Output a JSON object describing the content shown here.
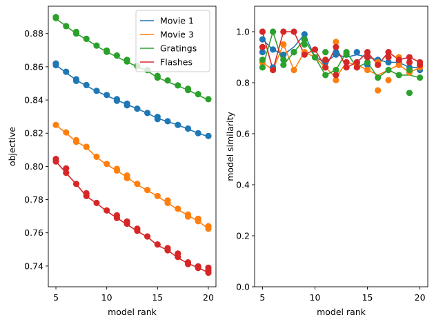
{
  "chart_data": [
    {
      "type": "line",
      "xlabel": "model rank",
      "ylabel": "objective",
      "xlim": [
        4.25,
        20.75
      ],
      "ylim": [
        0.7275,
        0.8965
      ],
      "xticks": [
        5,
        10,
        15,
        20
      ],
      "xtick_labels": [
        "5",
        "10",
        "15",
        "20"
      ],
      "yticks": [
        0.74,
        0.76,
        0.78,
        0.8,
        0.82,
        0.84,
        0.86,
        0.88
      ],
      "ytick_labels": [
        "0.74",
        "0.76",
        "0.78",
        "0.80",
        "0.82",
        "0.84",
        "0.86",
        "0.88"
      ],
      "legend": {
        "placement": "top-right",
        "entries": [
          "Movie 1",
          "Movie 3",
          "Gratings",
          "Flashes"
        ]
      },
      "grid": false,
      "x": [
        5,
        6,
        7,
        8,
        9,
        10,
        11,
        12,
        13,
        14,
        15,
        16,
        17,
        18,
        19,
        20
      ],
      "series": [
        {
          "name": "Movie 1",
          "color": "#1f77b4",
          "line": [
            0.861,
            0.8565,
            0.852,
            0.8485,
            0.8453,
            0.8425,
            0.84,
            0.8373,
            0.8347,
            0.832,
            0.829,
            0.827,
            0.825,
            0.8225,
            0.82,
            0.818
          ],
          "points": [
            [
              5,
              0.862
            ],
            [
              5,
              0.861
            ],
            [
              6,
              0.857
            ],
            [
              7,
              0.8525
            ],
            [
              7,
              0.8515
            ],
            [
              8,
              0.849
            ],
            [
              9,
              0.8455
            ],
            [
              10,
              0.843
            ],
            [
              11,
              0.8405
            ],
            [
              11,
              0.8395
            ],
            [
              12,
              0.8378
            ],
            [
              12,
              0.8368
            ],
            [
              13,
              0.8348
            ],
            [
              14,
              0.8322
            ],
            [
              15,
              0.8298
            ],
            [
              15,
              0.8285
            ],
            [
              16,
              0.8272
            ],
            [
              17,
              0.825
            ],
            [
              18,
              0.8228
            ],
            [
              19,
              0.82
            ],
            [
              20,
              0.8183
            ]
          ]
        },
        {
          "name": "Movie 3",
          "color": "#ff7f0e",
          "line": [
            0.825,
            0.82,
            0.815,
            0.8115,
            0.8055,
            0.801,
            0.7975,
            0.7935,
            0.789,
            0.7855,
            0.782,
            0.778,
            0.774,
            0.7705,
            0.767,
            0.7625
          ],
          "points": [
            [
              5,
              0.825
            ],
            [
              6,
              0.8205
            ],
            [
              7,
              0.8158
            ],
            [
              7,
              0.8148
            ],
            [
              8,
              0.8118
            ],
            [
              9,
              0.8058
            ],
            [
              10,
              0.8015
            ],
            [
              11,
              0.7985
            ],
            [
              11,
              0.7975
            ],
            [
              12,
              0.7945
            ],
            [
              12,
              0.793
            ],
            [
              13,
              0.7895
            ],
            [
              14,
              0.7858
            ],
            [
              15,
              0.7822
            ],
            [
              16,
              0.7795
            ],
            [
              16,
              0.778
            ],
            [
              17,
              0.7745
            ],
            [
              18,
              0.771
            ],
            [
              18,
              0.7698
            ],
            [
              19,
              0.7685
            ],
            [
              19,
              0.767
            ],
            [
              20,
              0.764
            ],
            [
              20,
              0.7625
            ]
          ]
        },
        {
          "name": "Gratings",
          "color": "#2ca02c",
          "line": [
            0.889,
            0.8845,
            0.88,
            0.8765,
            0.8725,
            0.869,
            0.866,
            0.863,
            0.86,
            0.8575,
            0.8535,
            0.851,
            0.8485,
            0.846,
            0.843,
            0.84
          ],
          "points": [
            [
              5,
              0.89
            ],
            [
              5,
              0.8893
            ],
            [
              6,
              0.8845
            ],
            [
              7,
              0.881
            ],
            [
              7,
              0.88
            ],
            [
              8,
              0.8768
            ],
            [
              9,
              0.8728
            ],
            [
              10,
              0.8698
            ],
            [
              10,
              0.869
            ],
            [
              11,
              0.8668
            ],
            [
              12,
              0.8642
            ],
            [
              12,
              0.8632
            ],
            [
              13,
              0.8605
            ],
            [
              14,
              0.858
            ],
            [
              15,
              0.8545
            ],
            [
              15,
              0.8535
            ],
            [
              16,
              0.8518
            ],
            [
              17,
              0.8488
            ],
            [
              18,
              0.8468
            ],
            [
              18,
              0.846
            ],
            [
              19,
              0.8435
            ],
            [
              20,
              0.8405
            ]
          ]
        },
        {
          "name": "Flashes",
          "color": "#d62728",
          "line": [
            0.803,
            0.796,
            0.7893,
            0.782,
            0.7778,
            0.773,
            0.769,
            0.765,
            0.761,
            0.7575,
            0.7525,
            0.7495,
            0.745,
            0.7415,
            0.739,
            0.736
          ],
          "points": [
            [
              5,
              0.8045
            ],
            [
              5,
              0.803
            ],
            [
              6,
              0.7988
            ],
            [
              6,
              0.7962
            ],
            [
              7,
              0.7895
            ],
            [
              8,
              0.7838
            ],
            [
              8,
              0.7822
            ],
            [
              9,
              0.778
            ],
            [
              10,
              0.7735
            ],
            [
              11,
              0.7705
            ],
            [
              11,
              0.769
            ],
            [
              12,
              0.7668
            ],
            [
              12,
              0.7655
            ],
            [
              13,
              0.7625
            ],
            [
              13,
              0.7612
            ],
            [
              14,
              0.7578
            ],
            [
              15,
              0.753
            ],
            [
              16,
              0.7508
            ],
            [
              16,
              0.7495
            ],
            [
              17,
              0.7475
            ],
            [
              17,
              0.7455
            ],
            [
              18,
              0.7422
            ],
            [
              18,
              0.7412
            ],
            [
              19,
              0.7398
            ],
            [
              19,
              0.7388
            ],
            [
              20,
              0.739
            ],
            [
              20,
              0.7375
            ],
            [
              20,
              0.736
            ]
          ]
        }
      ]
    },
    {
      "type": "line",
      "xlabel": "model rank",
      "ylabel": "model similarity",
      "xlim": [
        4.25,
        20.75
      ],
      "ylim": [
        0.0,
        1.1
      ],
      "xticks": [
        5,
        10,
        15,
        20
      ],
      "xtick_labels": [
        "5",
        "10",
        "15",
        "20"
      ],
      "yticks": [
        0.0,
        0.2,
        0.4,
        0.6,
        0.8,
        1.0
      ],
      "ytick_labels": [
        "0.0",
        "0.2",
        "0.4",
        "0.6",
        "0.8",
        "1.0"
      ],
      "grid": false,
      "x": [
        5,
        6,
        7,
        8,
        9,
        10,
        11,
        12,
        13,
        14,
        15,
        16,
        17,
        18,
        19,
        20
      ],
      "series": [
        {
          "color": "#1f77b4",
          "line": [
            0.97,
            0.93,
            0.91,
            0.94,
            0.99,
            0.9,
            0.88,
            0.91,
            0.9,
            0.91,
            0.9,
            0.89,
            0.88,
            0.88,
            0.86,
            0.86
          ],
          "points": [
            [
              5,
              0.97
            ],
            [
              5,
              0.92
            ],
            [
              6,
              0.93
            ],
            [
              6,
              0.86
            ],
            [
              7,
              0.91
            ],
            [
              7,
              0.89
            ],
            [
              8,
              0.92
            ],
            [
              9,
              0.99
            ],
            [
              9,
              0.97
            ],
            [
              10,
              0.9
            ],
            [
              11,
              0.88
            ],
            [
              12,
              0.91
            ],
            [
              12,
              0.92
            ],
            [
              13,
              0.91
            ],
            [
              14,
              0.92
            ],
            [
              14,
              0.88
            ],
            [
              15,
              0.9
            ],
            [
              15,
              0.87
            ],
            [
              16,
              0.89
            ],
            [
              17,
              0.88
            ],
            [
              18,
              0.88
            ],
            [
              19,
              0.86
            ],
            [
              20,
              0.85
            ]
          ]
        },
        {
          "color": "#ff7f0e",
          "line": [
            0.88,
            0.85,
            0.95,
            0.85,
            0.92,
            0.9,
            0.86,
            0.82,
            0.88,
            0.87,
            0.85,
            0.83,
            0.85,
            0.87,
            0.84,
            0.86
          ],
          "points": [
            [
              5,
              0.88
            ],
            [
              6,
              0.85
            ],
            [
              7,
              0.95
            ],
            [
              8,
              0.85
            ],
            [
              9,
              0.92
            ],
            [
              10,
              0.9
            ],
            [
              11,
              0.86
            ],
            [
              12,
              0.81
            ],
            [
              12,
              0.96
            ],
            [
              13,
              0.88
            ],
            [
              14,
              0.87
            ],
            [
              15,
              0.85
            ],
            [
              16,
              0.77
            ],
            [
              16,
              0.88
            ],
            [
              17,
              0.81
            ],
            [
              18,
              0.9
            ],
            [
              18,
              0.87
            ],
            [
              19,
              0.84
            ],
            [
              20,
              0.86
            ]
          ]
        },
        {
          "color": "#2ca02c",
          "line": [
            0.86,
            1.0,
            0.87,
            0.92,
            0.97,
            0.9,
            0.83,
            0.85,
            0.92,
            0.86,
            0.88,
            0.82,
            0.85,
            0.83,
            0.83,
            0.82
          ],
          "points": [
            [
              5,
              0.86
            ],
            [
              5,
              0.89
            ],
            [
              6,
              1.0
            ],
            [
              7,
              0.87
            ],
            [
              7,
              0.89
            ],
            [
              8,
              0.92
            ],
            [
              9,
              0.97
            ],
            [
              9,
              0.95
            ],
            [
              10,
              0.9
            ],
            [
              11,
              0.83
            ],
            [
              11,
              0.92
            ],
            [
              12,
              0.85
            ],
            [
              13,
              0.92
            ],
            [
              13,
              0.91
            ],
            [
              14,
              0.86
            ],
            [
              15,
              0.88
            ],
            [
              16,
              0.82
            ],
            [
              17,
              0.85
            ],
            [
              18,
              0.83
            ],
            [
              19,
              0.76
            ],
            [
              19,
              0.85
            ],
            [
              20,
              0.82
            ]
          ]
        },
        {
          "color": "#d62728",
          "line": [
            1.0,
            0.85,
            1.0,
            1.0,
            0.91,
            0.93,
            0.86,
            0.94,
            0.86,
            0.88,
            0.92,
            0.87,
            0.92,
            0.89,
            0.9,
            0.88
          ],
          "points": [
            [
              5,
              1.0
            ],
            [
              5,
              0.94
            ],
            [
              6,
              0.85
            ],
            [
              7,
              1.0
            ],
            [
              8,
              1.0
            ],
            [
              9,
              0.91
            ],
            [
              10,
              0.93
            ],
            [
              11,
              0.86
            ],
            [
              11,
              0.89
            ],
            [
              12,
              0.94
            ],
            [
              12,
              0.83
            ],
            [
              13,
              0.86
            ],
            [
              13,
              0.88
            ],
            [
              14,
              0.88
            ],
            [
              14,
              0.86
            ],
            [
              15,
              0.92
            ],
            [
              15,
              0.9
            ],
            [
              16,
              0.87
            ],
            [
              17,
              0.92
            ],
            [
              17,
              0.9
            ],
            [
              18,
              0.89
            ],
            [
              19,
              0.9
            ],
            [
              19,
              0.88
            ],
            [
              20,
              0.88
            ],
            [
              20,
              0.87
            ]
          ]
        }
      ]
    }
  ]
}
